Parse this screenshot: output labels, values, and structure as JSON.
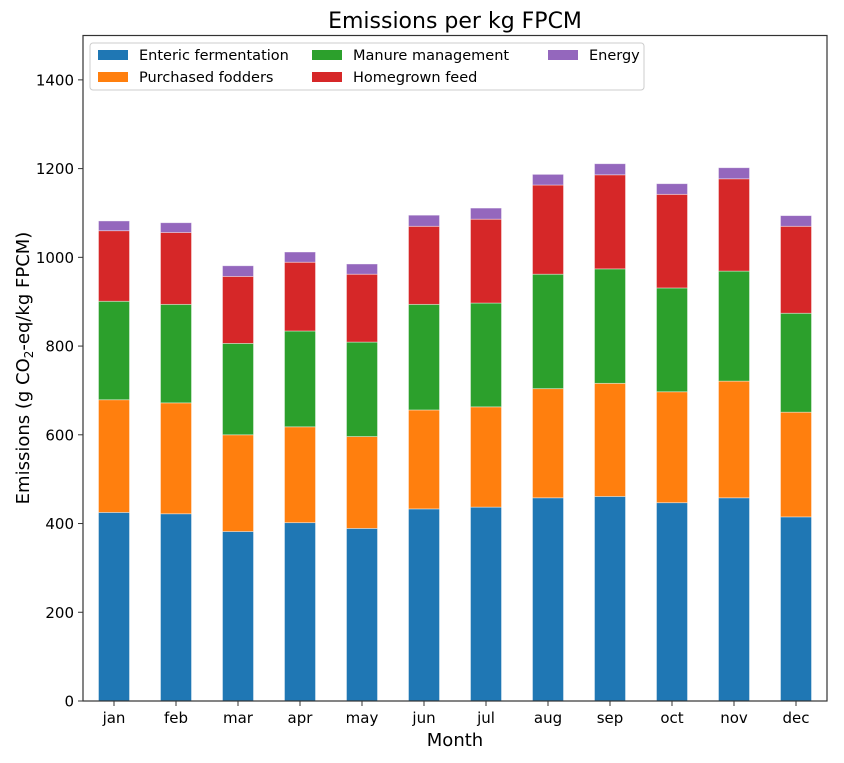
{
  "chart_data": {
    "type": "bar",
    "stacked": true,
    "title": "Emissions per kg FPCM",
    "xlabel": "Month",
    "ylabel": "Emissions (g CO2-eq/kg FPCM)",
    "ylabel_parts": {
      "pre": "Emissions (g CO",
      "sub": "2",
      "post": "-eq/kg FPCM)"
    },
    "ylim": [
      0,
      1500
    ],
    "yticks": [
      0,
      200,
      400,
      600,
      800,
      1000,
      1200,
      1400
    ],
    "grid": false,
    "legend_position": "top-left",
    "legend_columns": 3,
    "categories": [
      "jan",
      "feb",
      "mar",
      "apr",
      "may",
      "jun",
      "jul",
      "aug",
      "sep",
      "oct",
      "nov",
      "dec"
    ],
    "series": [
      {
        "name": "Enteric fermentation",
        "color": "#1f77b4",
        "values": [
          425,
          422,
          382,
          402,
          389,
          433,
          437,
          458,
          461,
          447,
          458,
          415
        ]
      },
      {
        "name": "Purchased fodders",
        "color": "#ff7f0e",
        "values": [
          254,
          250,
          218,
          216,
          207,
          223,
          226,
          246,
          255,
          250,
          263,
          236
        ]
      },
      {
        "name": "Manure management",
        "color": "#2ca02c",
        "values": [
          222,
          222,
          206,
          216,
          213,
          238,
          234,
          258,
          258,
          234,
          248,
          223
        ]
      },
      {
        "name": "Homegrown feed",
        "color": "#d62728",
        "values": [
          159,
          162,
          151,
          155,
          153,
          176,
          189,
          201,
          212,
          211,
          208,
          196
        ]
      },
      {
        "name": "Energy",
        "color": "#9467bd",
        "values": [
          22,
          22,
          24,
          23,
          23,
          25,
          25,
          24,
          25,
          24,
          25,
          24
        ]
      }
    ]
  }
}
